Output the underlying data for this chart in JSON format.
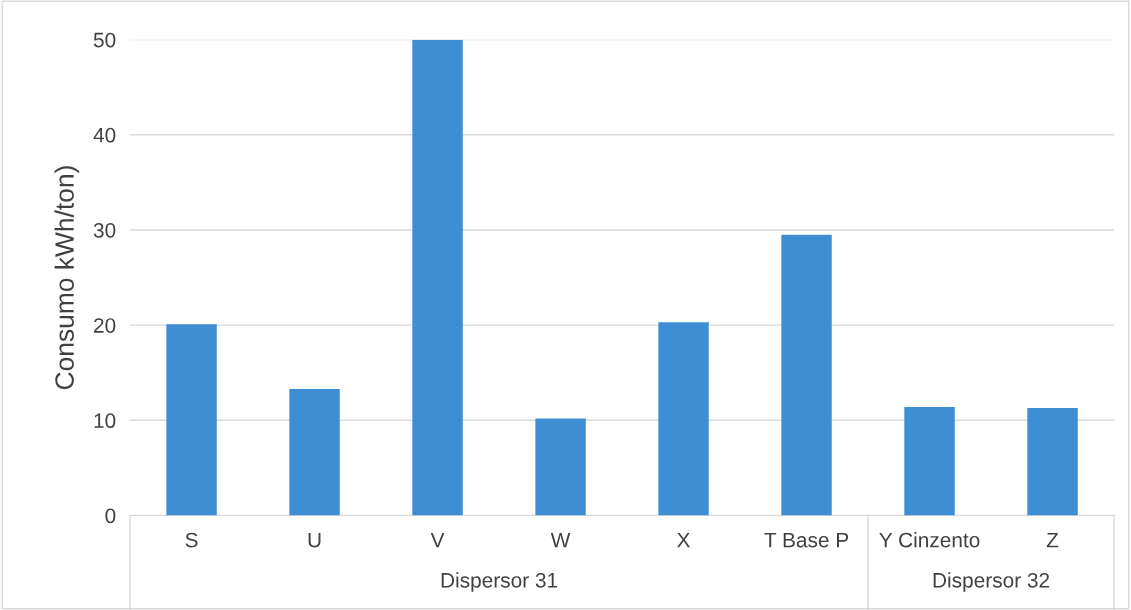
{
  "chart_data": {
    "type": "bar",
    "ylabel": "Consumo kWh/ton)",
    "categories": [
      "S",
      "U",
      "V",
      "W",
      "X",
      "T Base P",
      "Y Cinzento",
      "Z"
    ],
    "values": [
      20.1,
      13.3,
      50,
      10.2,
      20.3,
      29.5,
      11.4,
      11.3
    ],
    "color": "#3e8ed4",
    "ylim": [
      0,
      50
    ],
    "yticks": [
      0,
      10,
      20,
      30,
      40,
      50
    ],
    "grid": "y",
    "annotations": [
      "Dispersor 31",
      "Dispersor 32"
    ]
  }
}
